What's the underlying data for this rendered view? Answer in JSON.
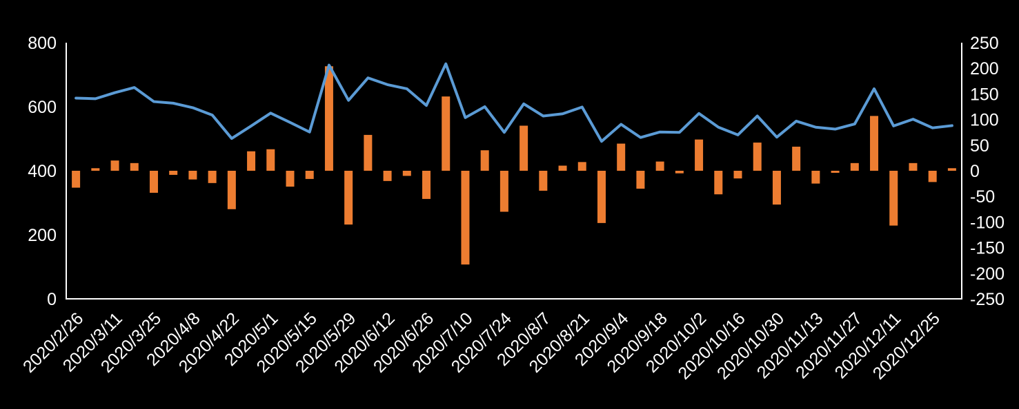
{
  "page": {
    "background_color": "#000000",
    "text_color": "#FFFFFF",
    "axis_line_color": "#FFFFFF"
  },
  "chart_data": {
    "type": "combo",
    "grid": false,
    "legend": false,
    "n_points": 46,
    "x_label_every_n_points": 2,
    "x_tick_labels": [
      "2020/2/26",
      "2020/3/11",
      "2020/3/25",
      "2020/4/8",
      "2020/4/22",
      "2020/5/1",
      "2020/5/15",
      "2020/5/29",
      "2020/6/12",
      "2020/6/26",
      "2020/7/10",
      "2020/7/24",
      "2020/8/7",
      "2020/8/21",
      "2020/9/4",
      "2020/9/18",
      "2020/10/2",
      "2020/10/16",
      "2020/10/30",
      "2020/11/13",
      "2020/11/27",
      "2020/12/11",
      "2020/12/25"
    ],
    "left_axis": {
      "min": 0,
      "max": 800,
      "tick_step": 200,
      "tick_labels": [
        "0",
        "200",
        "400",
        "600",
        "800"
      ]
    },
    "right_axis": {
      "min": -250,
      "max": 250,
      "tick_step": 50,
      "tick_labels": [
        "-250",
        "-200",
        "-150",
        "-100",
        "-50",
        "0",
        "50",
        "100",
        "150",
        "200",
        "250"
      ]
    },
    "series": [
      {
        "name": "line-series-left-axis",
        "type": "line",
        "axis": "left",
        "color": "#5B9BD5",
        "values": [
          627,
          625,
          644,
          660,
          616,
          611,
          597,
          574,
          501,
          540,
          580,
          551,
          521,
          730,
          620,
          690,
          669,
          656,
          604,
          734,
          566,
          600,
          520,
          609,
          571,
          578,
          599,
          492,
          545,
          504,
          521,
          520,
          579,
          536,
          512,
          571,
          505,
          555,
          536,
          530,
          546,
          656,
          540,
          561,
          534,
          541
        ]
      },
      {
        "name": "bar-series-right-axis",
        "type": "bar",
        "axis": "right",
        "color": "#ED7D31",
        "values": [
          -33,
          5,
          20,
          15,
          -43,
          -8,
          -17,
          -24,
          -75,
          38,
          42,
          -31,
          -16,
          204,
          -105,
          70,
          -20,
          -10,
          -55,
          145,
          -183,
          40,
          -80,
          88,
          -39,
          10,
          17,
          -102,
          53,
          -35,
          18,
          -5,
          61,
          -46,
          -15,
          55,
          -66,
          47,
          -25,
          -4,
          15,
          107,
          -107,
          15,
          -22,
          5
        ]
      }
    ]
  }
}
